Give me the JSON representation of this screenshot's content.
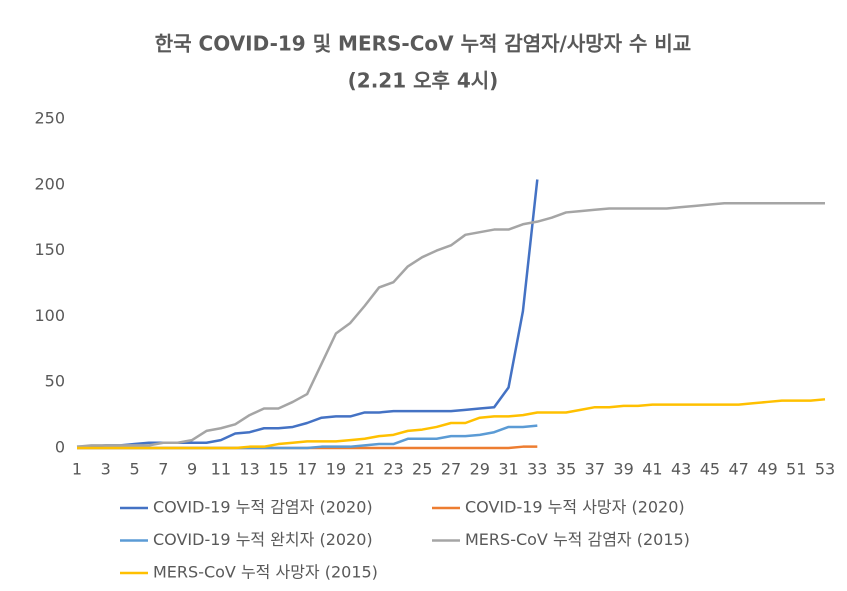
{
  "chart_data": {
    "type": "line",
    "title": "한국 COVID-19 및 MERS-CoV 누적 감염자/사망자 수 비교",
    "subtitle": "(2.21 오후 4시)",
    "x": [
      1,
      2,
      3,
      4,
      5,
      6,
      7,
      8,
      9,
      10,
      11,
      12,
      13,
      14,
      15,
      16,
      17,
      18,
      19,
      20,
      21,
      22,
      23,
      24,
      25,
      26,
      27,
      28,
      29,
      30,
      31,
      32,
      33,
      34,
      35,
      36,
      37,
      38,
      39,
      40,
      41,
      42,
      43,
      44,
      45,
      46,
      47,
      48,
      49,
      50,
      51,
      52,
      53
    ],
    "xlim": [
      1,
      53
    ],
    "xticks": [
      1,
      3,
      5,
      7,
      9,
      11,
      13,
      15,
      17,
      19,
      21,
      23,
      25,
      27,
      29,
      31,
      33,
      35,
      37,
      39,
      41,
      43,
      45,
      47,
      49,
      51,
      53
    ],
    "ylim": [
      0,
      250
    ],
    "yticks": [
      0,
      50,
      100,
      150,
      200,
      250
    ],
    "grid": false,
    "legend": "bottom",
    "series": [
      {
        "name": "COVID-19 누적 감염자 (2020)",
        "color": "#4472c4",
        "values": [
          1,
          1,
          2,
          2,
          3,
          4,
          4,
          4,
          4,
          4,
          6,
          11,
          12,
          15,
          15,
          16,
          19,
          23,
          24,
          24,
          27,
          27,
          28,
          28,
          28,
          28,
          28,
          29,
          30,
          31,
          46,
          104,
          204,
          null,
          null,
          null,
          null,
          null,
          null,
          null,
          null,
          null,
          null,
          null,
          null,
          null,
          null,
          null,
          null,
          null,
          null,
          null,
          null
        ]
      },
      {
        "name": "COVID-19 누적 사망자 (2020)",
        "color": "#ed7d31",
        "values": [
          0,
          0,
          0,
          0,
          0,
          0,
          0,
          0,
          0,
          0,
          0,
          0,
          0,
          0,
          0,
          0,
          0,
          0,
          0,
          0,
          0,
          0,
          0,
          0,
          0,
          0,
          0,
          0,
          0,
          0,
          0,
          1,
          1,
          null,
          null,
          null,
          null,
          null,
          null,
          null,
          null,
          null,
          null,
          null,
          null,
          null,
          null,
          null,
          null,
          null,
          null,
          null,
          null
        ]
      },
      {
        "name": "COVID-19 누적 완치자 (2020)",
        "color": "#5b9bd5",
        "values": [
          0,
          0,
          0,
          0,
          0,
          0,
          0,
          0,
          0,
          0,
          0,
          0,
          0,
          0,
          0,
          0,
          0,
          1,
          1,
          1,
          2,
          3,
          3,
          7,
          7,
          7,
          9,
          9,
          10,
          12,
          16,
          16,
          17,
          null,
          null,
          null,
          null,
          null,
          null,
          null,
          null,
          null,
          null,
          null,
          null,
          null,
          null,
          null,
          null,
          null,
          null,
          null,
          null
        ]
      },
      {
        "name": "MERS-CoV 누적 감염자 (2015)",
        "color": "#a5a5a5",
        "values": [
          1,
          2,
          2,
          2,
          2,
          2,
          4,
          4,
          6,
          13,
          15,
          18,
          25,
          30,
          30,
          35,
          41,
          64,
          87,
          95,
          108,
          122,
          126,
          138,
          145,
          150,
          154,
          162,
          164,
          166,
          166,
          170,
          172,
          175,
          179,
          180,
          181,
          182,
          182,
          182,
          182,
          182,
          183,
          184,
          185,
          186,
          186,
          186,
          186,
          186,
          186,
          186,
          186
        ]
      },
      {
        "name": "MERS-CoV 누적 사망자 (2015)",
        "color": "#ffc000",
        "values": [
          0,
          0,
          0,
          0,
          0,
          0,
          0,
          0,
          0,
          0,
          0,
          0,
          1,
          1,
          3,
          4,
          5,
          5,
          5,
          6,
          7,
          9,
          10,
          13,
          14,
          16,
          19,
          19,
          23,
          24,
          24,
          25,
          27,
          27,
          27,
          29,
          31,
          31,
          32,
          32,
          33,
          33,
          33,
          33,
          33,
          33,
          33,
          34,
          35,
          36,
          36,
          36,
          37
        ]
      }
    ]
  }
}
